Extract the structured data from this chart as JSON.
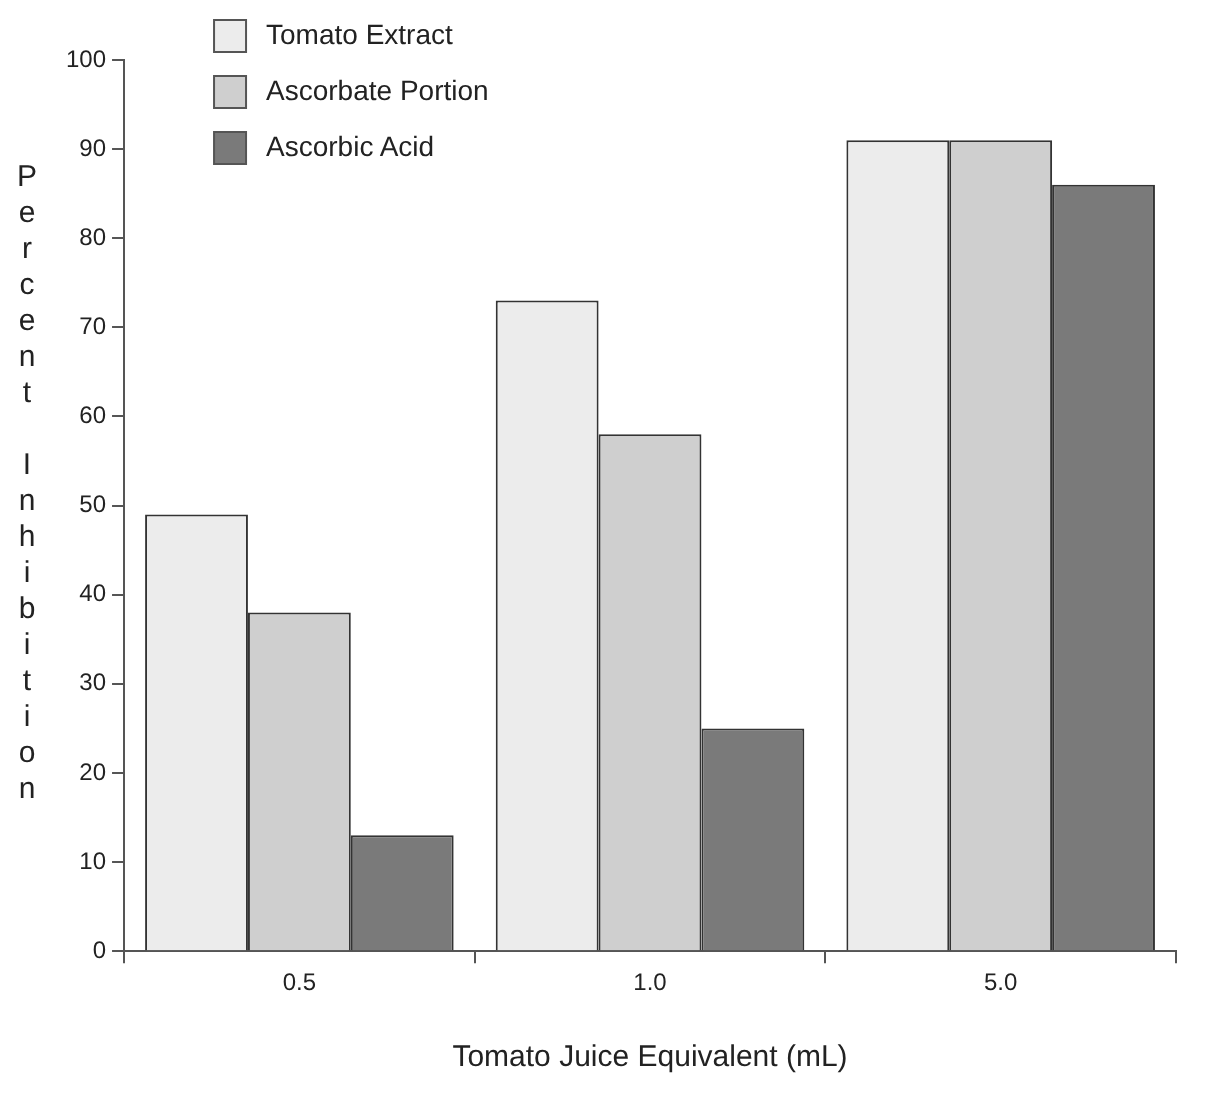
{
  "chart_data": {
    "type": "bar",
    "xlabel": "Tomato Juice Equivalent (mL)",
    "ylabel": "Percent Inhibition",
    "categories": [
      "0.5",
      "1.0",
      "5.0"
    ],
    "series": [
      {
        "name": "Tomato Extract",
        "color": "#ececec",
        "values": [
          49,
          73,
          91
        ]
      },
      {
        "name": "Ascorbate Portion",
        "color": "#cfcfcf",
        "values": [
          38,
          58,
          91
        ]
      },
      {
        "name": "Ascorbic Acid",
        "color": "#7a7a7a",
        "values": [
          13,
          25,
          86
        ]
      }
    ],
    "ylim": [
      0,
      100
    ],
    "yticks": [
      0,
      10,
      20,
      30,
      40,
      50,
      60,
      70,
      80,
      90,
      100
    ],
    "grid": false,
    "legend": "top left"
  }
}
